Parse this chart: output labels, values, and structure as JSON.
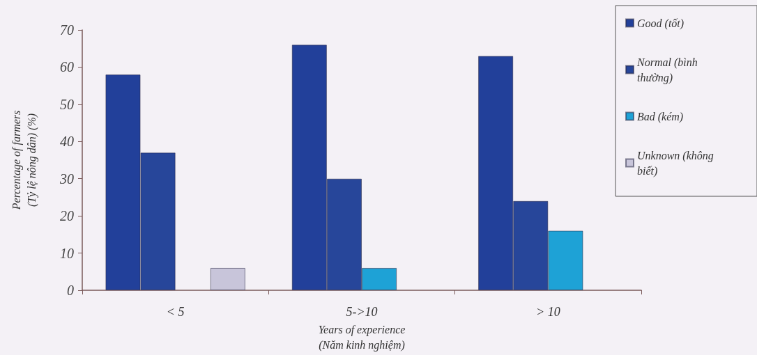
{
  "chart_data": {
    "type": "bar",
    "xlabel": "Years of experience (Năm kinh nghiệm)",
    "ylabel": "Percentage of farmers (Tỷ lệ nông dân) (%)",
    "categories": [
      "< 5",
      "5->10",
      "> 10"
    ],
    "series": [
      {
        "name": "Good (tốt)",
        "color": "#22409a",
        "values": [
          58,
          66,
          63
        ]
      },
      {
        "name": "Normal (bình thường)",
        "color": "#27469a",
        "values": [
          37,
          30,
          24
        ]
      },
      {
        "name": "Bad (kém)",
        "color": "#1ea2d6",
        "values": [
          null,
          6,
          16
        ]
      },
      {
        "name": "Unknown (không biết)",
        "color": "#c8c5da",
        "values": [
          6,
          null,
          null
        ]
      }
    ],
    "ylim": [
      0,
      70
    ],
    "yticks": [
      0,
      10,
      20,
      30,
      40,
      50,
      60,
      70
    ],
    "legend": "top right"
  }
}
